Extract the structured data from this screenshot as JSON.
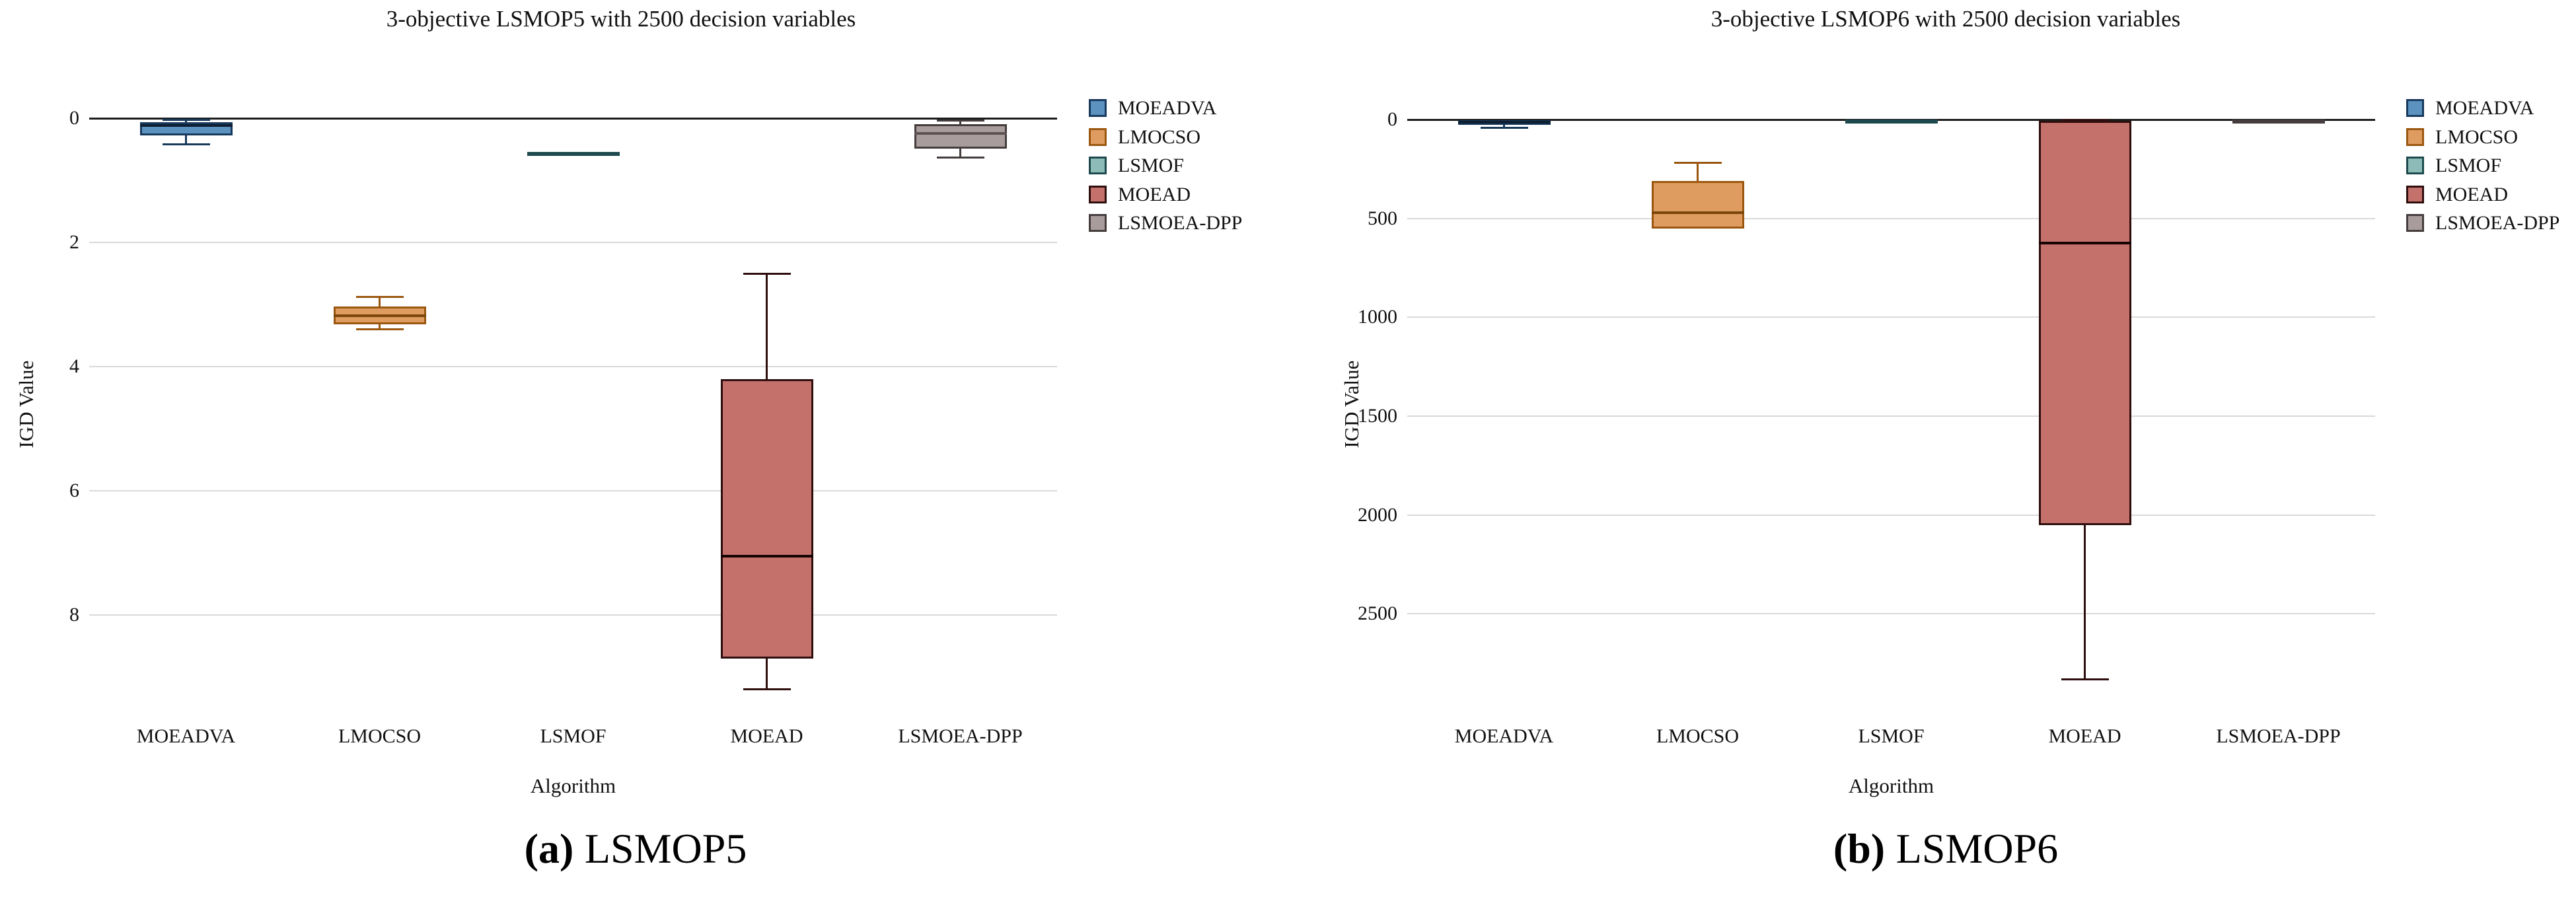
{
  "figure": {
    "background": "#ffffff",
    "gridline_color": "#d9d9d9",
    "zero_line_color": "#1c1c1c"
  },
  "colors": {
    "MOEADVA": {
      "fill": "#5b92bf",
      "border": "#17395c",
      "median": "#0e1f33"
    },
    "LMOCSO": {
      "fill": "#de9c60",
      "border": "#9a570f",
      "median": "#7c450a"
    },
    "LSMOF": {
      "fill": "#8cbbb8",
      "border": "#1e4a4d",
      "median": "#143539"
    },
    "MOEAD": {
      "fill": "#c4706b",
      "border": "#2e0f0e",
      "median": "#160404"
    },
    "LSMOEA-DPP": {
      "fill": "#a99c9c",
      "border": "#453d3d",
      "median": "#5d5252"
    }
  },
  "chart_data": [
    {
      "type": "box",
      "title": "3-objective LSMOP5 with 2500 decision variables",
      "xlabel": "Algorithm",
      "ylabel": "IGD Value",
      "y_axis": {
        "inverted": true,
        "ticks": [
          0,
          2,
          4,
          6,
          8
        ],
        "range": [
          0,
          9.35
        ],
        "grid": true
      },
      "categories": [
        "MOEADVA",
        "LMOCSO",
        "LSMOF",
        "MOEAD",
        "LSMOEA-DPP"
      ],
      "series": [
        {
          "name": "MOEADVA",
          "min": 0.03,
          "q1": 0.06,
          "median": 0.12,
          "q3": 0.28,
          "max": 0.42
        },
        {
          "name": "LMOCSO",
          "min": 2.88,
          "q1": 3.03,
          "median": 3.18,
          "q3": 3.32,
          "max": 3.4
        },
        {
          "name": "LSMOF",
          "min": 0.53,
          "q1": 0.545,
          "median": 0.56,
          "q3": 0.575,
          "max": 0.59
        },
        {
          "name": "MOEAD",
          "min": 2.5,
          "q1": 4.2,
          "median": 7.05,
          "q3": 8.7,
          "max": 9.2
        },
        {
          "name": "LSMOEA-DPP",
          "min": 0.04,
          "q1": 0.1,
          "median": 0.24,
          "q3": 0.49,
          "max": 0.63
        }
      ],
      "legend": {
        "position": "right",
        "entries": [
          "MOEADVA",
          "LMOCSO",
          "LSMOF",
          "MOEAD",
          "LSMOEA-DPP"
        ]
      },
      "caption": {
        "prefix": "(a)",
        "label": "LSMOP5"
      }
    },
    {
      "type": "box",
      "title": "3-objective LSMOP6 with 2500 decision variables",
      "xlabel": "Algorithm",
      "ylabel": "IGD Value",
      "y_axis": {
        "inverted": true,
        "ticks": [
          0,
          500,
          1000,
          1500,
          2000,
          2500
        ],
        "range": [
          0,
          2930
        ],
        "grid": true
      },
      "categories": [
        "MOEADVA",
        "LMOCSO",
        "LSMOF",
        "MOEAD",
        "LSMOEA-DPP"
      ],
      "series": [
        {
          "name": "MOEADVA",
          "min": 2,
          "q1": 2,
          "median": 15,
          "q3": 28,
          "max": 42
        },
        {
          "name": "LMOCSO",
          "min": 220,
          "q1": 310,
          "median": 470,
          "q3": 550,
          "max": 555
        },
        {
          "name": "LSMOF",
          "min": 0,
          "q1": 0,
          "median": 3,
          "q3": 6,
          "max": 6
        },
        {
          "name": "MOEAD",
          "min": 0,
          "q1": 8,
          "median": 625,
          "q3": 2050,
          "max": 2830
        },
        {
          "name": "LSMOEA-DPP",
          "min": 0,
          "q1": 0,
          "median": 2,
          "q3": 5,
          "max": 5
        }
      ],
      "legend": {
        "position": "right",
        "entries": [
          "MOEADVA",
          "LMOCSO",
          "LSMOF",
          "MOEAD",
          "LSMOEA-DPP"
        ]
      },
      "caption": {
        "prefix": "(b)",
        "label": "LSMOP6"
      }
    }
  ]
}
